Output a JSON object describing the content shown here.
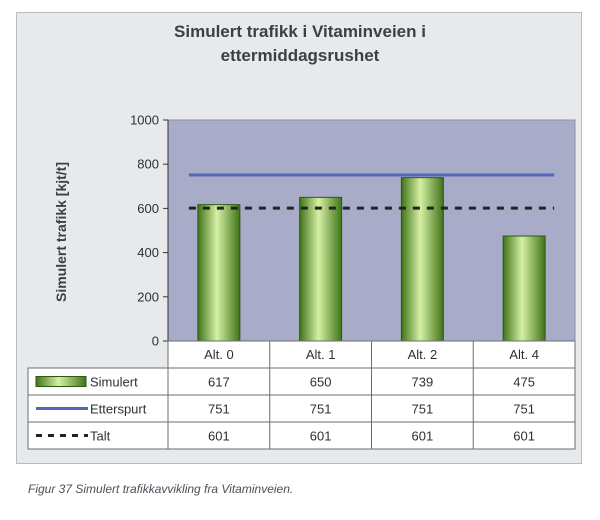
{
  "title_line1": "Simulert trafikk i Vitaminveien i",
  "title_line2": "ettermiddagsrushet",
  "caption": "Figur 37 Simulert trafikkavvikling fra Vitaminveien.",
  "chart_data": {
    "type": "bar",
    "title": "Simulert trafikk i Vitaminveien i ettermiddagsrushet",
    "ylabel": "Simulert trafikk [kjt/t]",
    "xlabel": "",
    "ylim": [
      0,
      1000
    ],
    "yticks": [
      "0",
      "200",
      "400",
      "600",
      "800",
      "1000"
    ],
    "categories": [
      "Alt. 0",
      "Alt. 1",
      "Alt. 2",
      "Alt. 4"
    ],
    "series": [
      {
        "name": "Simulert",
        "kind": "bar",
        "values": [
          617,
          650,
          739,
          475
        ],
        "labels": [
          "617",
          "650",
          "739",
          "475"
        ],
        "color": "#5f9a2a"
      },
      {
        "name": "Etterspurt",
        "kind": "line",
        "values": [
          751,
          751,
          751,
          751
        ],
        "labels": [
          "751",
          "751",
          "751",
          "751"
        ],
        "color": "#5266b8"
      },
      {
        "name": "Talt",
        "kind": "dashed-line",
        "values": [
          601,
          601,
          601,
          601
        ],
        "labels": [
          "601",
          "601",
          "601",
          "601"
        ],
        "color": "#222222"
      }
    ],
    "grid": false,
    "legend": "data-table"
  }
}
